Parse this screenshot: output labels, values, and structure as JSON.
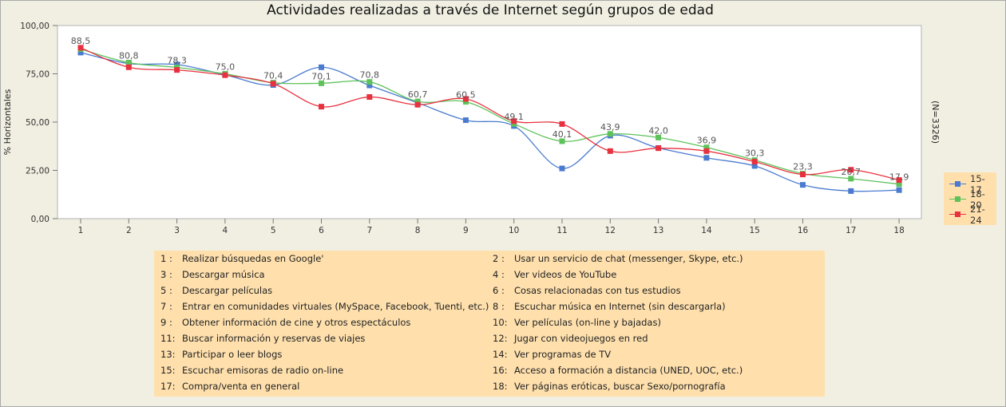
{
  "chart_data": {
    "type": "line",
    "title": "Actividades realizadas a través de Internet según grupos de edad",
    "ylabel": "% Horizontales",
    "side_note": "(N=3326)",
    "ylim": [
      0,
      100
    ],
    "y_ticks": [
      "0,00",
      "25,00",
      "50,00",
      "75,00",
      "100,00"
    ],
    "x": [
      1,
      2,
      3,
      4,
      5,
      6,
      7,
      8,
      9,
      10,
      11,
      12,
      13,
      14,
      15,
      16,
      17,
      18
    ],
    "series": [
      {
        "name": "15-17",
        "color": "#4a7bd0",
        "values": [
          86.0,
          80.3,
          79.8,
          74.5,
          69.2,
          78.4,
          69.0,
          60.0,
          51.0,
          48.0,
          26.0,
          43.0,
          36.6,
          31.5,
          27.3,
          17.5,
          14.3,
          14.8
        ]
      },
      {
        "name": "18-20",
        "color": "#5ec25b",
        "values": [
          87.8,
          80.8,
          78.3,
          75.0,
          70.4,
          70.1,
          70.8,
          60.7,
          60.5,
          49.1,
          40.1,
          43.9,
          42.0,
          36.9,
          30.3,
          23.3,
          20.7,
          17.9
        ]
      },
      {
        "name": "21-24",
        "color": "#e8313f",
        "values": [
          88.5,
          78.4,
          77.0,
          74.3,
          69.9,
          58.0,
          63.0,
          59.0,
          62.0,
          50.5,
          49.0,
          35.0,
          36.5,
          35.0,
          29.5,
          22.9,
          25.3,
          20.0
        ]
      }
    ],
    "data_labels": [
      {
        "x": 1,
        "y": 88.5,
        "text": "88,5"
      },
      {
        "x": 2,
        "y": 80.8,
        "text": "80,8"
      },
      {
        "x": 3,
        "y": 78.3,
        "text": "78,3"
      },
      {
        "x": 4,
        "y": 75.0,
        "text": "75,0"
      },
      {
        "x": 5,
        "y": 70.4,
        "text": "70,4"
      },
      {
        "x": 6,
        "y": 70.1,
        "text": "70,1"
      },
      {
        "x": 7,
        "y": 70.8,
        "text": "70,8"
      },
      {
        "x": 8,
        "y": 60.7,
        "text": "60,7"
      },
      {
        "x": 9,
        "y": 60.5,
        "text": "60,5"
      },
      {
        "x": 10,
        "y": 49.1,
        "text": "49,1"
      },
      {
        "x": 11,
        "y": 40.1,
        "text": "40,1"
      },
      {
        "x": 12,
        "y": 43.9,
        "text": "43,9"
      },
      {
        "x": 13,
        "y": 42.0,
        "text": "42,0"
      },
      {
        "x": 14,
        "y": 36.9,
        "text": "36,9"
      },
      {
        "x": 15,
        "y": 30.3,
        "text": "30,3"
      },
      {
        "x": 16,
        "y": 23.3,
        "text": "23,3"
      },
      {
        "x": 17,
        "y": 20.7,
        "text": "20,7"
      },
      {
        "x": 18,
        "y": 17.9,
        "text": "17,9"
      }
    ],
    "legend_position": "right"
  },
  "activities": [
    {
      "num": "1 :",
      "label": "Realizar búsquedas en Google'"
    },
    {
      "num": "2 :",
      "label": "Usar un servicio de chat (messenger, Skype, etc.)"
    },
    {
      "num": "3 :",
      "label": "Descargar música"
    },
    {
      "num": "4 :",
      "label": "Ver videos de YouTube"
    },
    {
      "num": "5 :",
      "label": "Descargar películas"
    },
    {
      "num": "6 :",
      "label": "Cosas relacionadas con tus estudios"
    },
    {
      "num": "7 :",
      "label": "Entrar en comunidades virtuales (MySpace, Facebook, Tuenti, etc.)"
    },
    {
      "num": "8 :",
      "label": "Escuchar música en Internet (sin descargarla)"
    },
    {
      "num": "9 :",
      "label": "Obtener información de cine y otros espectáculos"
    },
    {
      "num": "10:",
      "label": "Ver películas (on-line y bajadas)"
    },
    {
      "num": "11:",
      "label": "Buscar información y reservas de viajes"
    },
    {
      "num": "12:",
      "label": "Jugar con videojuegos en red"
    },
    {
      "num": "13:",
      "label": "Participar o leer blogs"
    },
    {
      "num": "14:",
      "label": "Ver programas de TV"
    },
    {
      "num": "15:",
      "label": "Escuchar emisoras de radio on-line"
    },
    {
      "num": "16:",
      "label": "Acceso a formación a distancia (UNED, UOC, etc.)"
    },
    {
      "num": "17:",
      "label": "Compra/venta en general"
    },
    {
      "num": "18:",
      "label": "Ver páginas eróticas, buscar Sexo/pornografía"
    }
  ]
}
